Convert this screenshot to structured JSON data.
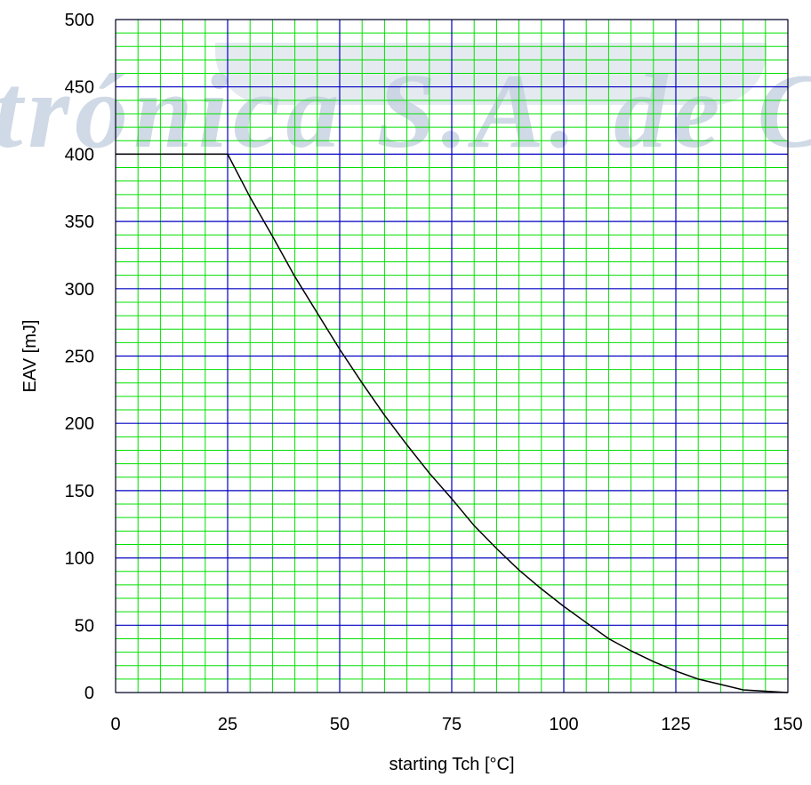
{
  "watermark": {
    "text": "trónica S.A. de C.V"
  },
  "colors": {
    "minor_grid": "#00e000",
    "major_grid": "#0000c0",
    "curve": "#000000",
    "frame": "#000000"
  },
  "chart_data": {
    "type": "line",
    "title": "",
    "xlabel": "starting Tch [°C]",
    "ylabel": "EAV [mJ]",
    "xlim": [
      0,
      150
    ],
    "ylim": [
      0,
      500
    ],
    "x_ticks": [
      0,
      25,
      50,
      75,
      100,
      125,
      150
    ],
    "y_ticks": [
      0,
      50,
      100,
      150,
      200,
      250,
      300,
      350,
      400,
      450,
      500
    ],
    "x_minor_step": 5,
    "y_minor_step": 10,
    "grid": true,
    "series": [
      {
        "x": [
          0,
          25,
          30,
          35,
          40,
          45,
          50,
          55,
          60,
          65,
          70,
          75,
          80,
          85,
          90,
          95,
          100,
          105,
          110,
          115,
          120,
          125,
          130,
          135,
          140,
          145,
          150
        ],
        "y": [
          400,
          400,
          368,
          339,
          309,
          282,
          255,
          230,
          206,
          184,
          163,
          144,
          124,
          107,
          91,
          77,
          64,
          52,
          40,
          31,
          23,
          16,
          10,
          6,
          2,
          1,
          0
        ]
      }
    ]
  }
}
